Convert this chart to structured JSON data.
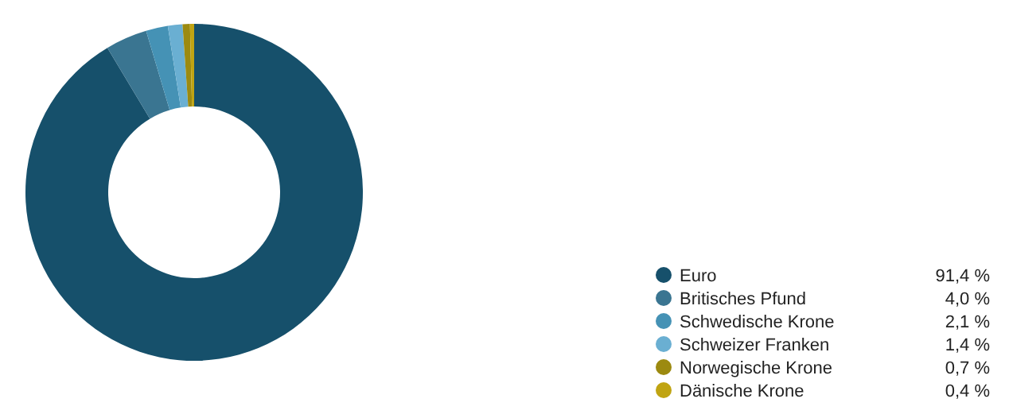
{
  "chart_data": {
    "type": "donut",
    "categories": [
      "Euro",
      "Britisches Pfund",
      "Schwedische Krone",
      "Schweizer Franken",
      "Norwegische Krone",
      "Dänische Krone"
    ],
    "values": [
      91.4,
      4.0,
      2.1,
      1.4,
      0.7,
      0.4
    ],
    "value_labels": [
      "91,4 %",
      "4,0 %",
      "2,1 %",
      "1,4 %",
      "0,7 %",
      "0,4 %"
    ],
    "colors": [
      "#16506b",
      "#3a7591",
      "#4592b5",
      "#6aafd2",
      "#9c8a10",
      "#c0a412"
    ],
    "legend": "bottom right"
  }
}
